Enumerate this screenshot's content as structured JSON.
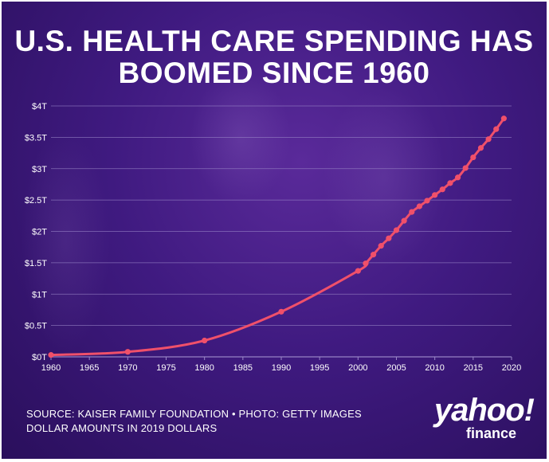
{
  "title_line1": "U.S. HEALTH CARE SPENDING HAS",
  "title_line2": "BOOMED SINCE 1960",
  "source_line1": "SOURCE: KAISER FAMILY FOUNDATION • PHOTO: GETTY IMAGES",
  "source_line2": "DOLLAR AMOUNTS IN 2019 DOLLARS",
  "logo": {
    "main": "yahoo!",
    "sub": "finance"
  },
  "colors": {
    "line": "#f0506a",
    "background": "#3f1a80",
    "grid": "#9a86c8"
  },
  "chart_data": {
    "type": "line",
    "title": "U.S. HEALTH CARE SPENDING HAS BOOMED SINCE 1960",
    "xlim": [
      1960,
      2020
    ],
    "ylim": [
      0,
      4
    ],
    "grid": true,
    "x_ticks": [
      1960,
      1965,
      1970,
      1975,
      1980,
      1985,
      1990,
      1995,
      2000,
      2005,
      2010,
      2015,
      2020
    ],
    "x_tick_labels": [
      "1960",
      "1965",
      "1970",
      "1975",
      "1980",
      "1985",
      "1990",
      "1995",
      "2000",
      "2005",
      "2010",
      "2015",
      "2020"
    ],
    "y_ticks": [
      0,
      0.5,
      1,
      1.5,
      2,
      2.5,
      3,
      3.5,
      4
    ],
    "y_tick_labels": [
      "$0T",
      "$0.5T",
      "$1T",
      "$1.5T",
      "$2T",
      "$2.5T",
      "$3T",
      "$3.5T",
      "$4T"
    ],
    "series": [
      {
        "x": [
          1960,
          1970,
          1980,
          1990,
          2000,
          2001,
          2002,
          2003,
          2004,
          2005,
          2006,
          2007,
          2008,
          2009,
          2010,
          2011,
          2012,
          2013,
          2014,
          2015,
          2016,
          2017,
          2018,
          2019
        ],
        "y": [
          0.03,
          0.08,
          0.26,
          0.72,
          1.37,
          1.49,
          1.63,
          1.77,
          1.89,
          2.02,
          2.17,
          2.31,
          2.4,
          2.49,
          2.58,
          2.67,
          2.77,
          2.86,
          3.01,
          3.18,
          3.33,
          3.47,
          3.63,
          3.8
        ]
      }
    ]
  }
}
